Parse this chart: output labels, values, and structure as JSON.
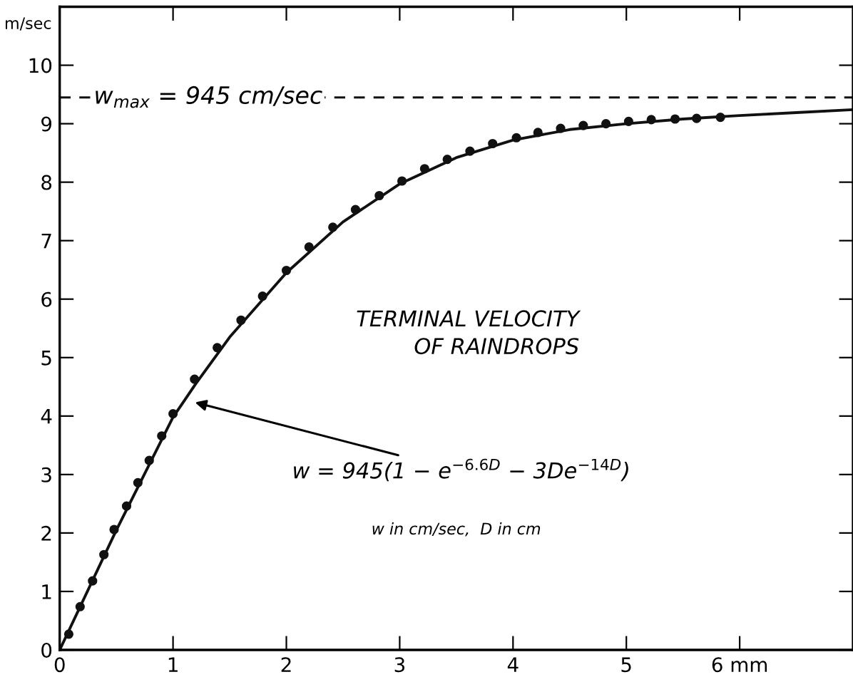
{
  "chart_data": {
    "type": "scatter",
    "title": "TERMINAL VELOCITY\nOF RAINDROPS",
    "ylabel": "m/sec",
    "xlim": [
      0,
      7
    ],
    "ylim": [
      0,
      11
    ],
    "xticks": [
      0,
      1,
      2,
      3,
      4,
      5,
      {
        "value": 6,
        "label": "6 mm"
      }
    ],
    "yticks": [
      0,
      1,
      2,
      3,
      4,
      5,
      6,
      7,
      8,
      9,
      10
    ],
    "grid": false,
    "legend": false,
    "series": [
      {
        "color": "#111111",
        "marker": "circle",
        "x": [
          0.08,
          0.18,
          0.29,
          0.39,
          0.48,
          0.59,
          0.69,
          0.79,
          0.9,
          1.0,
          1.19,
          1.39,
          1.6,
          1.79,
          2.0,
          2.2,
          2.41,
          2.61,
          2.82,
          3.02,
          3.22,
          3.42,
          3.62,
          3.82,
          4.03,
          4.22,
          4.42,
          4.62,
          4.82,
          5.02,
          5.22,
          5.43,
          5.62,
          5.83
        ],
        "values": [
          0.27,
          0.74,
          1.18,
          1.63,
          2.06,
          2.46,
          2.86,
          3.24,
          3.66,
          4.04,
          4.63,
          5.17,
          5.64,
          6.05,
          6.49,
          6.89,
          7.23,
          7.53,
          7.77,
          8.02,
          8.23,
          8.39,
          8.53,
          8.66,
          8.76,
          8.85,
          8.92,
          8.97,
          9.0,
          9.04,
          9.07,
          9.08,
          9.09,
          9.11
        ]
      },
      {
        "type": "line",
        "color": "#111111",
        "marker": "none",
        "line_style": "solid",
        "x": [
          0,
          0.5,
          1,
          1.2,
          1.5,
          2,
          2.5,
          3,
          3.5,
          4,
          4.5,
          5,
          5.5,
          6,
          6.5,
          7
        ],
        "values": [
          0,
          2.05,
          3.98,
          4.55,
          5.35,
          6.45,
          7.32,
          7.97,
          8.42,
          8.72,
          8.9,
          9.0,
          9.08,
          9.14,
          9.19,
          9.24
        ]
      }
    ],
    "ref_lines": [
      {
        "axis": "y",
        "value": 9.45,
        "label": "w$_{max}$ = 945 cm/sec",
        "color": "#111111",
        "line_style": "dashed"
      }
    ],
    "annotations": [
      {
        "text": "w = 945(1 − e$^{−6.6D}$ − 3De$^{−14D}$)",
        "x": 1.16,
        "y": 4.25
      },
      "w in cm/sec,  D in cm"
    ]
  }
}
